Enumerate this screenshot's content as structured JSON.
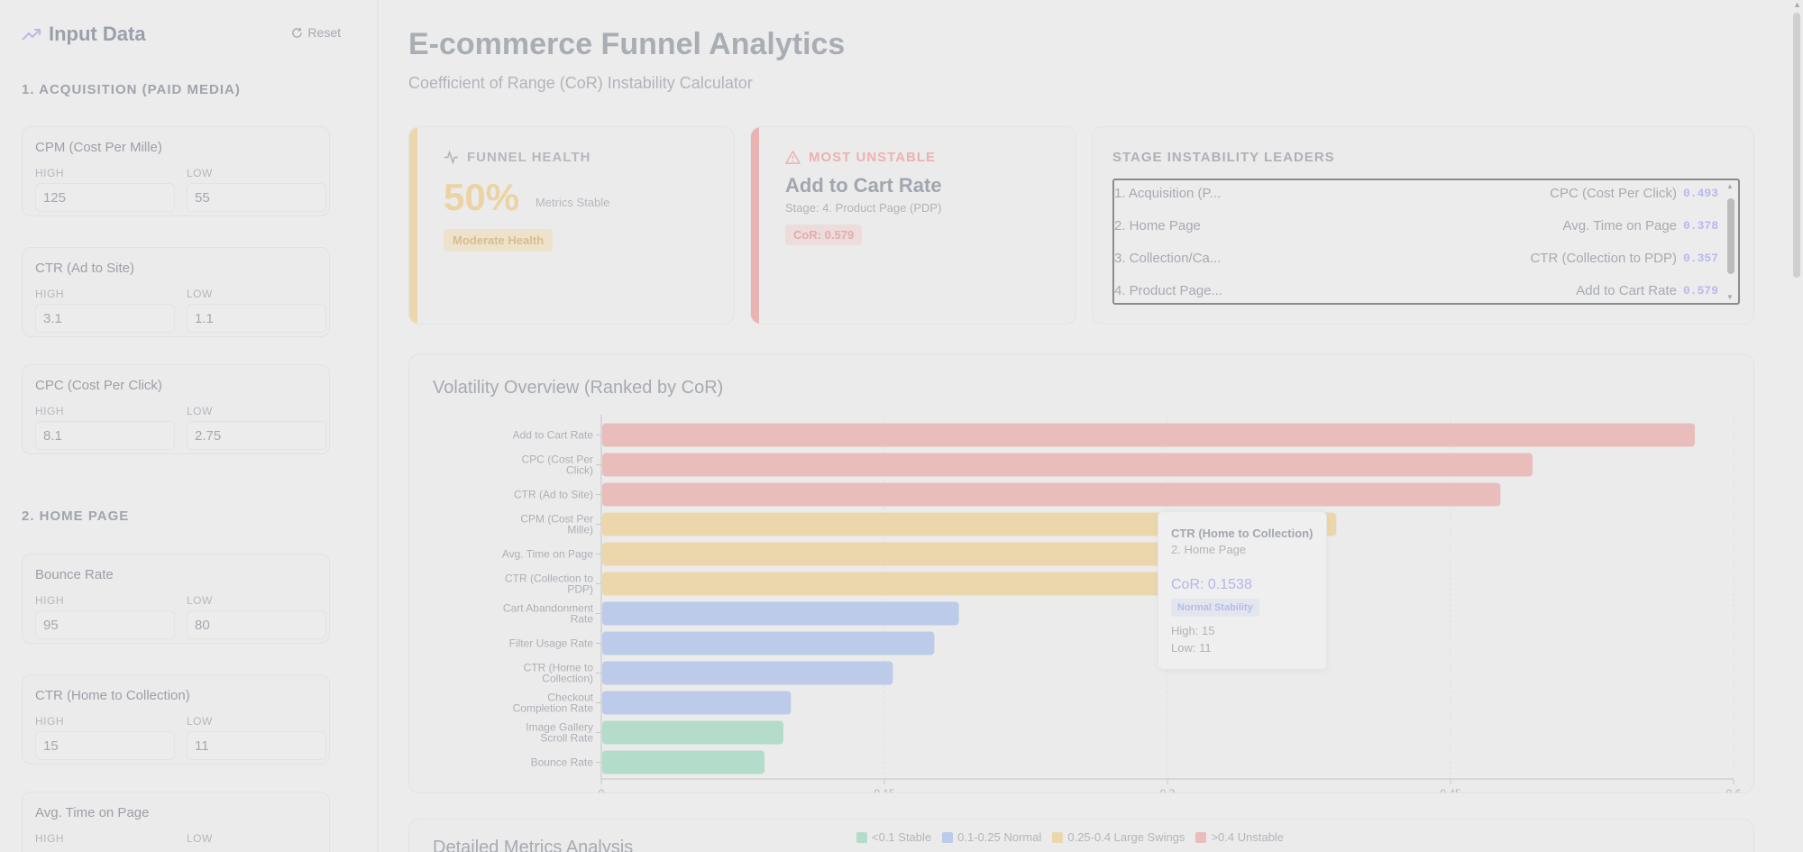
{
  "sidebar": {
    "title": "Input Data",
    "reset_label": "Reset",
    "high_label": "HIGH",
    "low_label": "LOW",
    "sections": [
      {
        "title": "1. ACQUISITION (PAID MEDIA)",
        "metrics": [
          {
            "name": "CPM (Cost Per Mille)",
            "high": "125",
            "low": "55"
          },
          {
            "name": "CTR (Ad to Site)",
            "high": "3.1",
            "low": "1.1"
          },
          {
            "name": "CPC (Cost Per Click)",
            "high": "8.1",
            "low": "2.75"
          }
        ]
      },
      {
        "title": "2. HOME PAGE",
        "metrics": [
          {
            "name": "Bounce Rate",
            "high": "95",
            "low": "80"
          },
          {
            "name": "CTR (Home to Collection)",
            "high": "15",
            "low": "11"
          },
          {
            "name": "Avg. Time on Page",
            "high": "",
            "low": ""
          }
        ]
      }
    ]
  },
  "header": {
    "title": "E-commerce Funnel Analytics",
    "subtitle": "Coefficient of Range (CoR) Instability Calculator"
  },
  "health_card": {
    "label": "FUNNEL HEALTH",
    "percent": "50%",
    "sub": "Metrics Stable",
    "badge": "Moderate Health",
    "accent": "#ecd7ad"
  },
  "unstable_card": {
    "label": "MOST UNSTABLE",
    "metric": "Add to Cart Rate",
    "stage": "Stage: 4. Product Page (PDP)",
    "badge": "CoR: 0.579",
    "accent": "#eab3b3"
  },
  "leaders": {
    "label": "STAGE INSTABILITY LEADERS",
    "rows": [
      {
        "stage": "1. Acquisition (P...",
        "metric": "CPC (Cost Per Click)",
        "cor": "0.493"
      },
      {
        "stage": "2. Home Page",
        "metric": "Avg. Time on Page",
        "cor": "0.378"
      },
      {
        "stage": "3. Collection/Ca...",
        "metric": "CTR (Collection to PDP)",
        "cor": "0.357"
      },
      {
        "stage": "4. Product Page...",
        "metric": "Add to Cart Rate",
        "cor": "0.579"
      }
    ]
  },
  "chart_data": {
    "type": "bar",
    "orientation": "horizontal",
    "title": "Volatility Overview (Ranked by CoR)",
    "categories": [
      "Add to Cart Rate",
      "CPC (Cost Per Click)",
      "CTR (Ad to Site)",
      "CPM (Cost Per Mille)",
      "Avg. Time on Page",
      "CTR (Collection to PDP)",
      "Cart Abandonment Rate",
      "Filter Usage Rate",
      "CTR (Home to Collection)",
      "Checkout Completion Rate",
      "Image Gallery Scroll Rate",
      "Bounce Rate"
    ],
    "category_lines": [
      [
        "Add to Cart Rate"
      ],
      [
        "CPC (Cost Per",
        "Click)"
      ],
      [
        "CTR (Ad to Site)"
      ],
      [
        "CPM (Cost Per",
        "Mille)"
      ],
      [
        "Avg. Time on Page"
      ],
      [
        "CTR (Collection to",
        "PDP)"
      ],
      [
        "Cart Abandonment",
        "Rate"
      ],
      [
        "Filter Usage Rate"
      ],
      [
        "CTR (Home to",
        "Collection)"
      ],
      [
        "Checkout",
        "Completion Rate"
      ],
      [
        "Image Gallery",
        "Scroll Rate"
      ],
      [
        "Bounce Rate"
      ]
    ],
    "values": [
      0.579,
      0.493,
      0.476,
      0.389,
      0.378,
      0.357,
      0.189,
      0.176,
      0.154,
      0.1,
      0.096,
      0.086
    ],
    "bands": [
      "unstable",
      "unstable",
      "unstable",
      "large",
      "large",
      "large",
      "normal",
      "normal",
      "normal",
      "normal",
      "stable",
      "stable"
    ],
    "xlim": [
      0,
      0.6
    ],
    "xticks": [
      0,
      0.15,
      0.3,
      0.45,
      0.6
    ],
    "xtick_labels": [
      "0",
      "0.15",
      "0.3",
      "0.45",
      "0.6"
    ],
    "grid": true,
    "legend": [
      {
        "key": "stable",
        "label": "<0.1 Stable",
        "color": "#b3dccb"
      },
      {
        "key": "normal",
        "label": "0.1-0.25 Normal",
        "color": "#bccbe9"
      },
      {
        "key": "large",
        "label": "0.25-0.4 Large Swings",
        "color": "#ecd7ad"
      },
      {
        "key": "unstable",
        "label": ">0.4 Unstable",
        "color": "#eabdbd"
      }
    ],
    "legend_position": "bottom",
    "tooltip": {
      "metric": "CTR (Home to Collection)",
      "stage": "2. Home Page",
      "cor": "CoR: 0.1538",
      "badge": "Normal Stability",
      "high": "High: 15",
      "low": "Low: 11"
    }
  },
  "detail": {
    "title": "Detailed Metrics Analysis"
  }
}
